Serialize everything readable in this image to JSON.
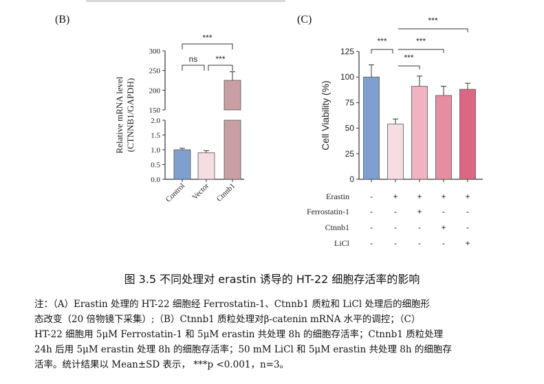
{
  "panels": {
    "b_label": "(B)",
    "c_label": "(C)"
  },
  "caption": {
    "title": "图 3.5 不同处理对 erastin 诱导的 HT-22 细胞存活率的影响",
    "note_lines": [
      "注：（A）Erastin 处理的 HT-22 细胞经 Ferrostatin-1、Ctnnb1 质粒和 LiCl 处理后的细胞形",
      "态改变（20 倍物镜下采集）;（B）Ctnnb1 质粒处理对β-catenin mRNA 水平的调控；（C）",
      "HT-22 细胞用 5μM Ferrostatin-1 和 5μM erastin 共处理 8h 的细胞存活率；Ctnnb1 质粒处理",
      "24h 后用 5μM erastin 处理 8h 的细胞存活率；50 mM LiCl 和 5μM erastin 共处理 8h 的细胞存",
      "活率。统计结果以 Mean±SD 表示， ***p <0.001，n=3。"
    ]
  },
  "chart_data": [
    {
      "type": "bar",
      "panel": "B",
      "categories": [
        "Control",
        "Vector",
        "Ctnnb1"
      ],
      "values": [
        1.0,
        0.9,
        225
      ],
      "errors": [
        0.05,
        0.07,
        22
      ],
      "ylabel_lines": [
        "Relative mRNA level",
        "(CTNNB1/GAPDH)"
      ],
      "y_broken": true,
      "ylim_lower": [
        0,
        2.0
      ],
      "ylim_upper": [
        150,
        300
      ],
      "yticks_lower": [
        "0.0",
        "0.5",
        "1.0",
        "1.5",
        "2.0"
      ],
      "yticks_upper": [
        "150",
        "200",
        "250",
        "300"
      ],
      "colors": [
        "#7f9fce",
        "#f6dde2",
        "#c8a0a3"
      ],
      "significance": [
        {
          "label": "ns",
          "from": "Control",
          "to": "Vector"
        },
        {
          "label": "***",
          "from": "Vector",
          "to": "Ctnnb1"
        },
        {
          "label": "***",
          "from": "Control",
          "to": "Ctnnb1"
        }
      ]
    },
    {
      "type": "bar",
      "panel": "C",
      "values": [
        100,
        54,
        91,
        82,
        88
      ],
      "errors": [
        12,
        5,
        10,
        9,
        6
      ],
      "ylabel": "Cell Viability (%)",
      "ylim": [
        0,
        125
      ],
      "yticks": [
        "0",
        "25",
        "50",
        "75",
        "100",
        "125"
      ],
      "colors": [
        "#7f9fce",
        "#f6dde2",
        "#efb3c1",
        "#e68ea1",
        "#dc6784"
      ],
      "treatments": [
        {
          "name": "Erastin",
          "signs": [
            "-",
            "+",
            "+",
            "+",
            "+"
          ]
        },
        {
          "name": "Ferrostatin-1",
          "signs": [
            "-",
            "-",
            "+",
            "-",
            "-"
          ]
        },
        {
          "name": "Ctnnb1",
          "signs": [
            "-",
            "-",
            "-",
            "+",
            "-"
          ]
        },
        {
          "name": "LiCl",
          "signs": [
            "-",
            "-",
            "-",
            "-",
            "+"
          ]
        }
      ],
      "significance": [
        {
          "label": "***",
          "from": 0,
          "to": 1
        },
        {
          "label": "***",
          "from": 1,
          "to": 2
        },
        {
          "label": "***",
          "from": 1,
          "to": 3
        },
        {
          "label": "***",
          "from": 1,
          "to": 4
        }
      ]
    }
  ]
}
